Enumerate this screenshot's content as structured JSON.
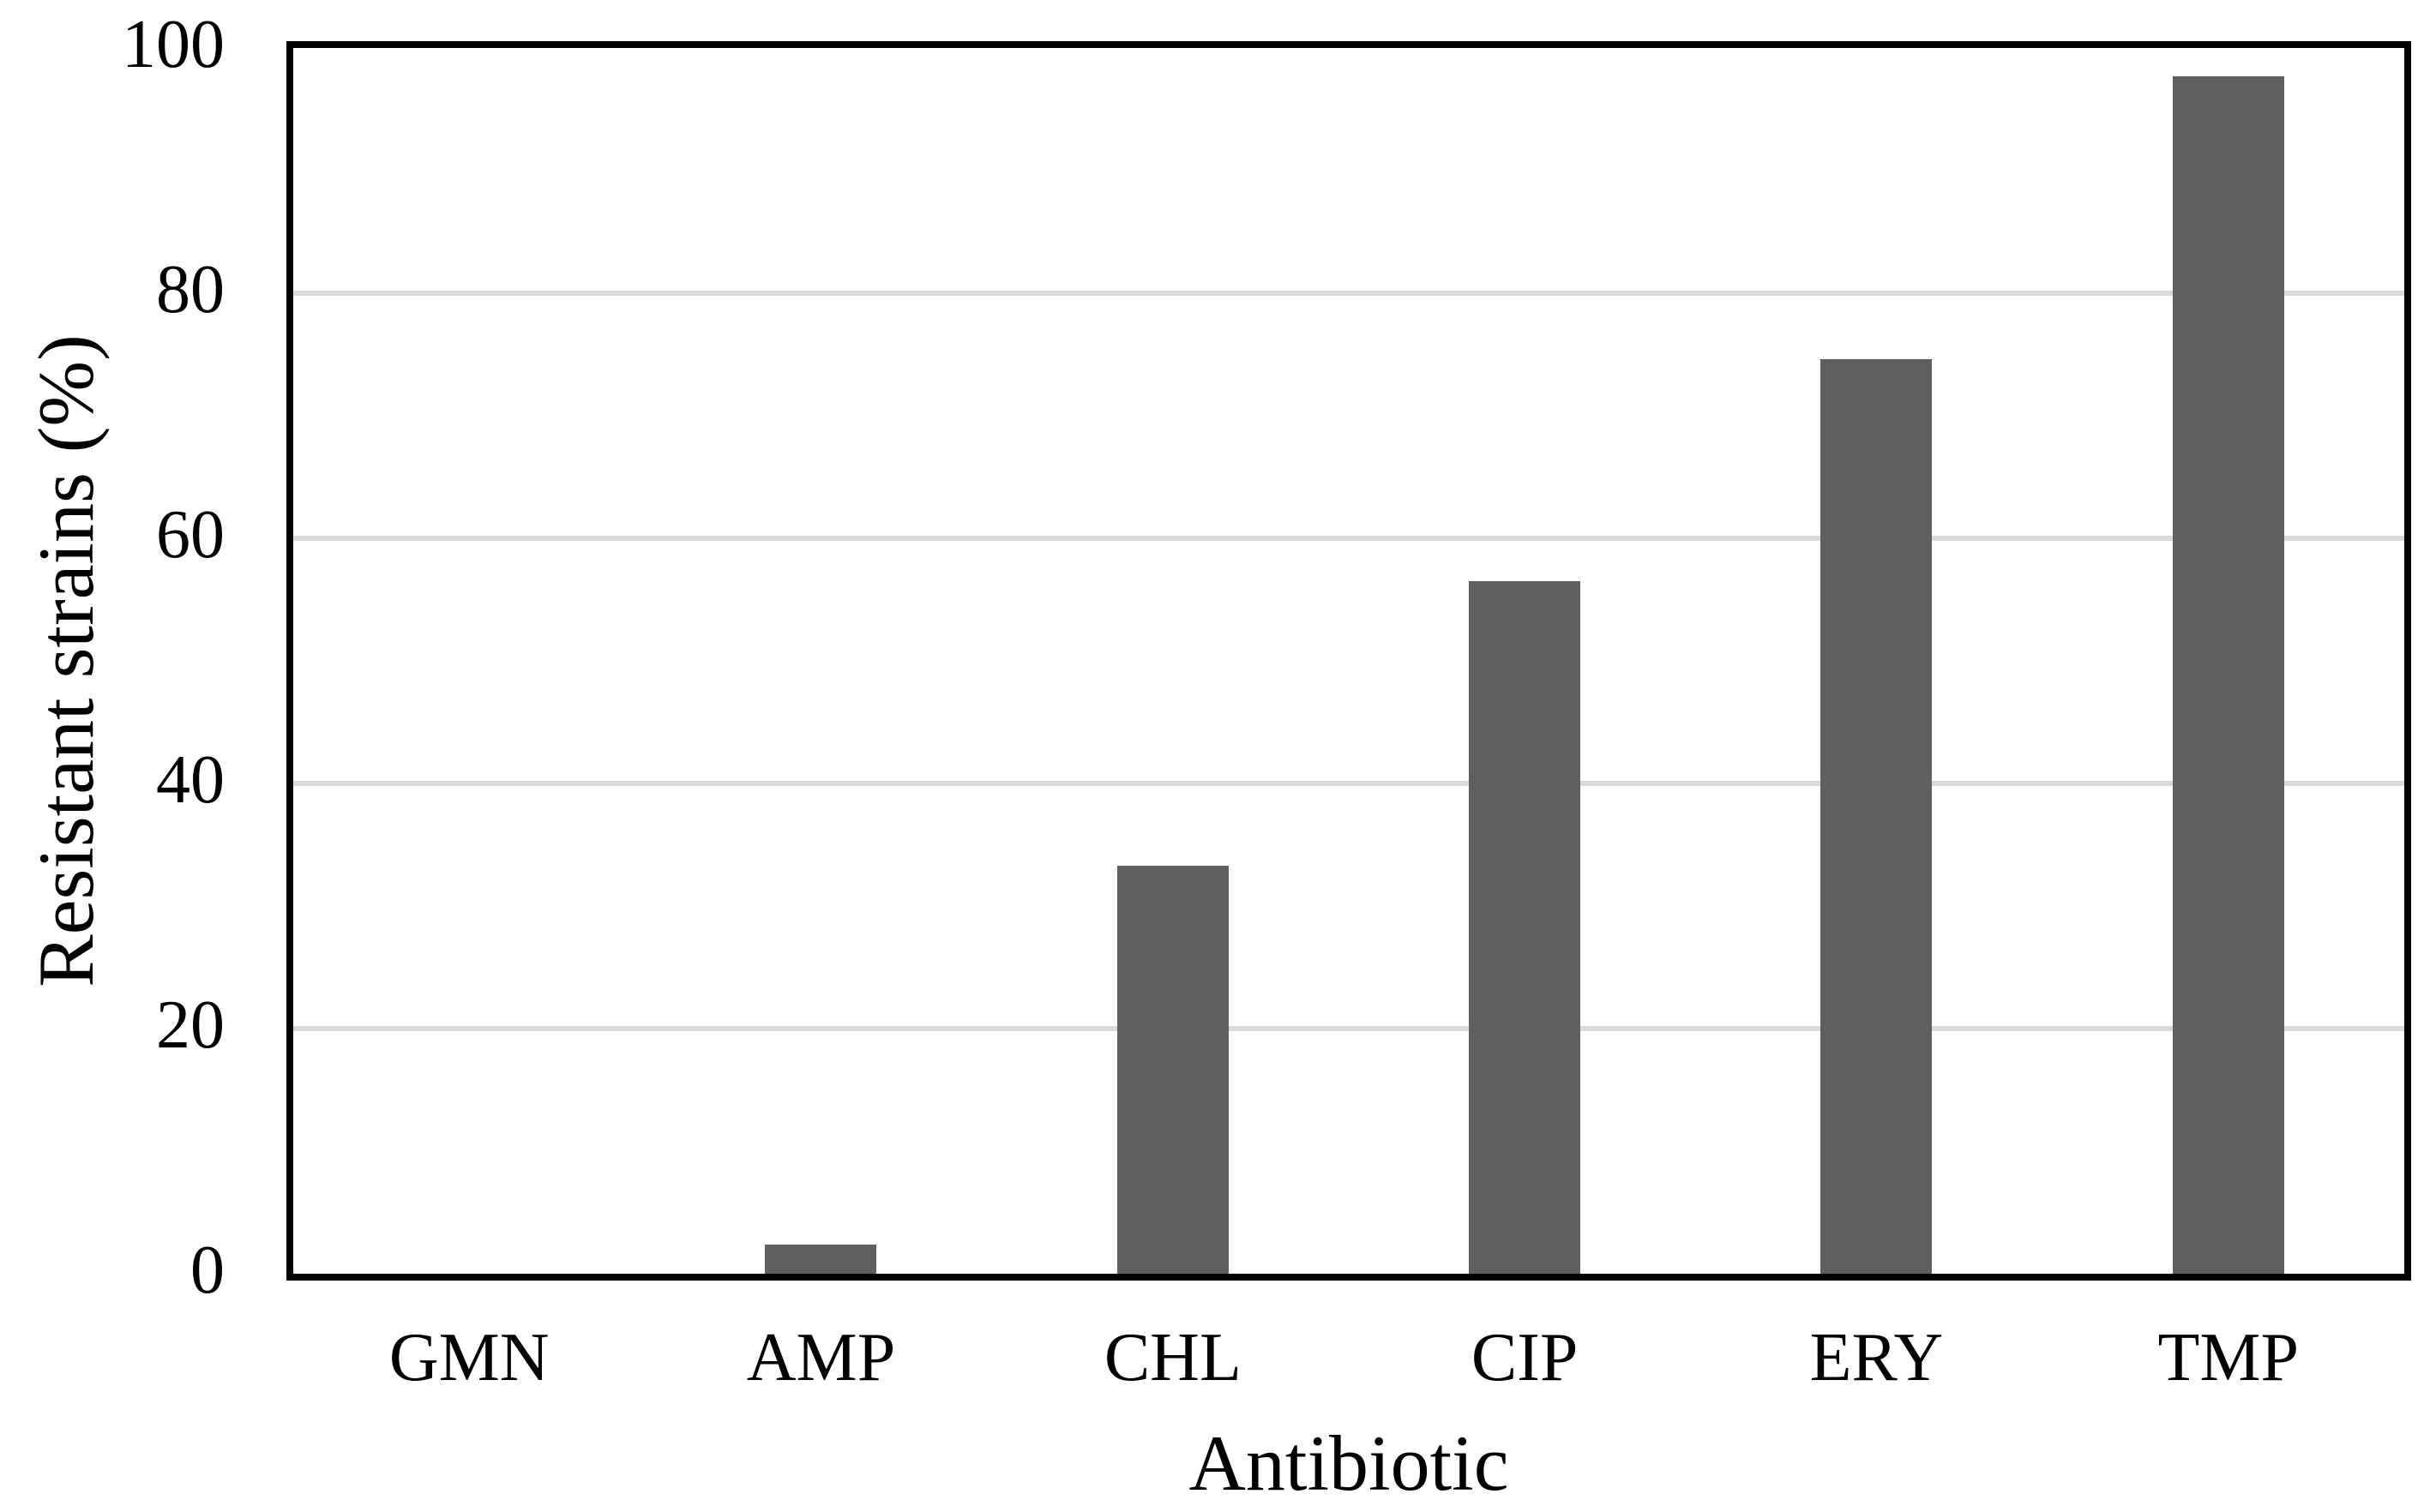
{
  "chart_data": {
    "type": "bar",
    "title": "",
    "xlabel": "Antibiotic",
    "ylabel": "Resistant strains (%)",
    "categories": [
      "GMN",
      "AMP",
      "CHL",
      "CIP",
      "ERY",
      "TMP"
    ],
    "values": [
      0,
      2.4,
      33.3,
      56.5,
      74.6,
      97.7
    ],
    "ylim": [
      0,
      100
    ],
    "yticks": [
      0,
      20,
      40,
      60,
      80,
      100
    ],
    "grid": "horizontal",
    "legend_position": "none",
    "bar_color": "#5F5F5F",
    "gridline_color": "#D9D9D9",
    "axis_border_color": "#000000",
    "background_color": "#FFFFFF",
    "text_color": "#000000"
  }
}
